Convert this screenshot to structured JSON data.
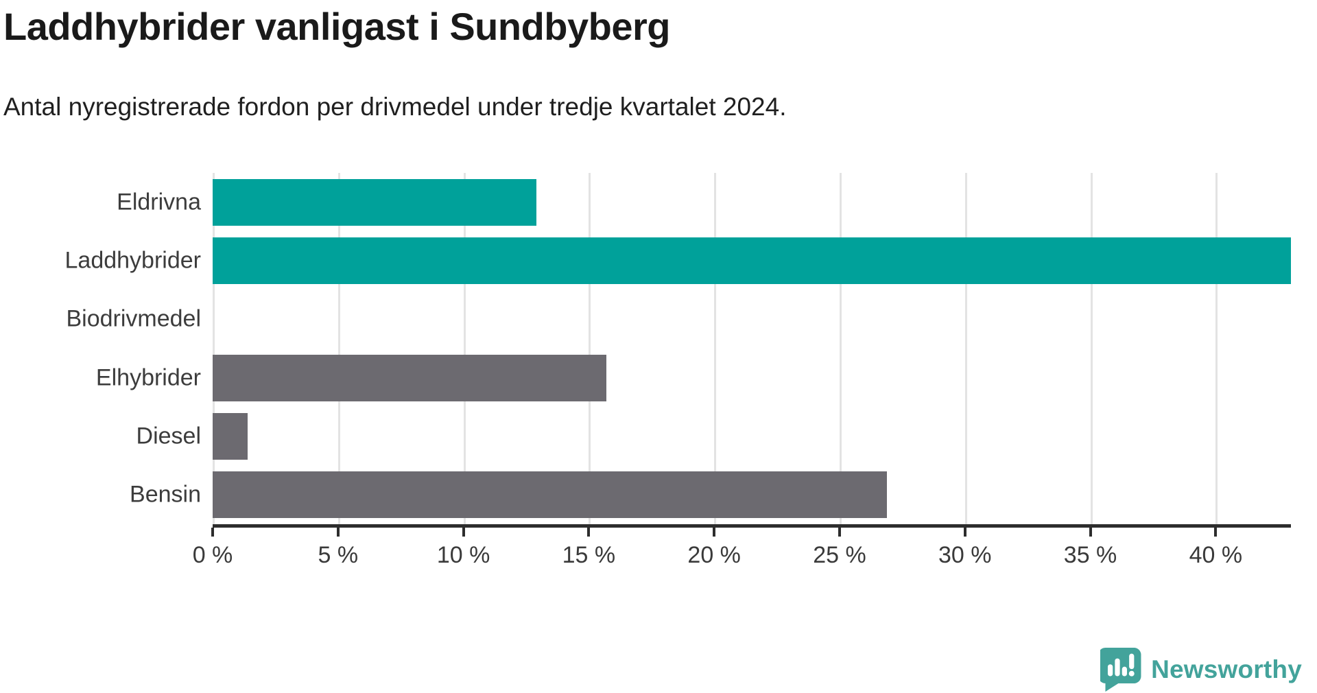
{
  "header": {
    "title": "Laddhybrider vanligast i Sundbyberg",
    "subtitle": "Antal nyregistrerade fordon per drivmedel under tredje kvartalet 2024."
  },
  "chart_data": {
    "type": "bar",
    "orientation": "horizontal",
    "title": "Laddhybrider vanligast i Sundbyberg",
    "subtitle": "Antal nyregistrerade fordon per drivmedel under tredje kvartalet 2024.",
    "categories": [
      "Eldrivna",
      "Laddhybrider",
      "Biodrivmedel",
      "Elhybrider",
      "Diesel",
      "Bensin"
    ],
    "values": [
      12.9,
      43.0,
      0,
      15.7,
      1.4,
      26.9
    ],
    "unit": "%",
    "bar_colors": [
      "#00a19a",
      "#00a19a",
      "#6c6a70",
      "#6c6a70",
      "#6c6a70",
      "#6c6a70"
    ],
    "highlight_color": "#00a19a",
    "default_bar_color": "#6c6a70",
    "xlabel": "",
    "ylabel": "",
    "xlim": [
      0,
      43
    ],
    "xticks": [
      0,
      5,
      10,
      15,
      20,
      25,
      30,
      35,
      40
    ],
    "tick_suffix": " %",
    "grid": true,
    "gridline_color": "#e3e3e3",
    "axis_color": "#2d2d2d",
    "legend": false
  },
  "footer": {
    "brand": "Newsworthy",
    "brand_color": "#43a39b"
  }
}
